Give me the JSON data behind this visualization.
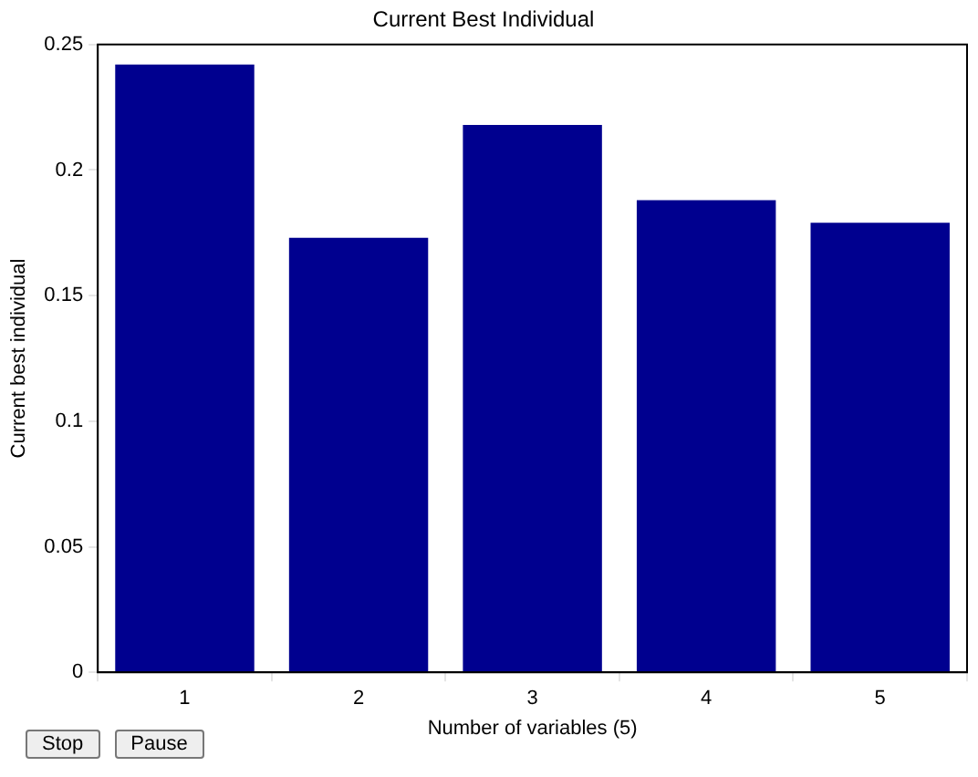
{
  "chart_data": {
    "type": "bar",
    "title": "Current Best Individual",
    "xlabel": "Number of variables (5)",
    "ylabel": "Current best individual",
    "categories": [
      "1",
      "2",
      "3",
      "4",
      "5"
    ],
    "values": [
      0.242,
      0.173,
      0.218,
      0.188,
      0.179
    ],
    "color": "#00008f",
    "ylim": [
      0,
      0.25
    ],
    "yticks": [
      0,
      0.05,
      0.1,
      0.15,
      0.2,
      0.25
    ],
    "grid": false,
    "annotations": [
      "Stop",
      "Pause"
    ]
  }
}
